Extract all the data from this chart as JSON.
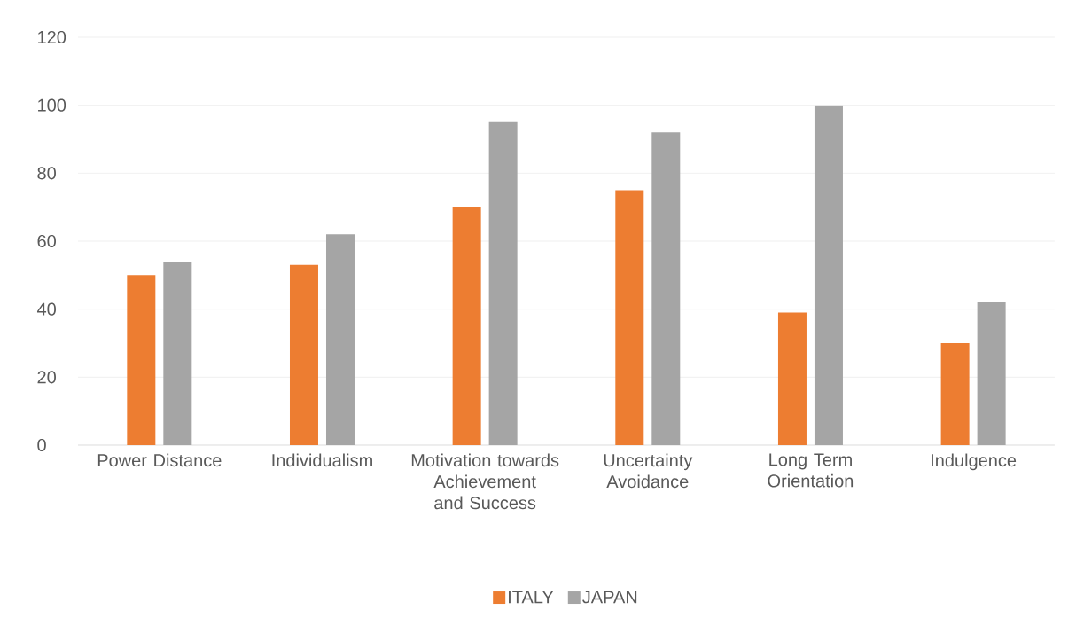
{
  "chart_data": {
    "type": "bar",
    "categories": [
      "Power Distance",
      "Individualism",
      "Motivation towards Achievement and Success",
      "Uncertainty Avoidance",
      "Long Term Orientation",
      "Indulgence"
    ],
    "series": [
      {
        "name": "ITALY",
        "color": "#ed7d31",
        "values": [
          50,
          53,
          70,
          75,
          39,
          30
        ]
      },
      {
        "name": "JAPAN",
        "color": "#a5a5a5",
        "values": [
          54,
          62,
          95,
          92,
          100,
          42
        ]
      }
    ],
    "ylim": [
      0,
      120
    ],
    "yticks": [
      0,
      20,
      40,
      60,
      80,
      100,
      120
    ],
    "grid": "y",
    "legend": "bottom"
  }
}
